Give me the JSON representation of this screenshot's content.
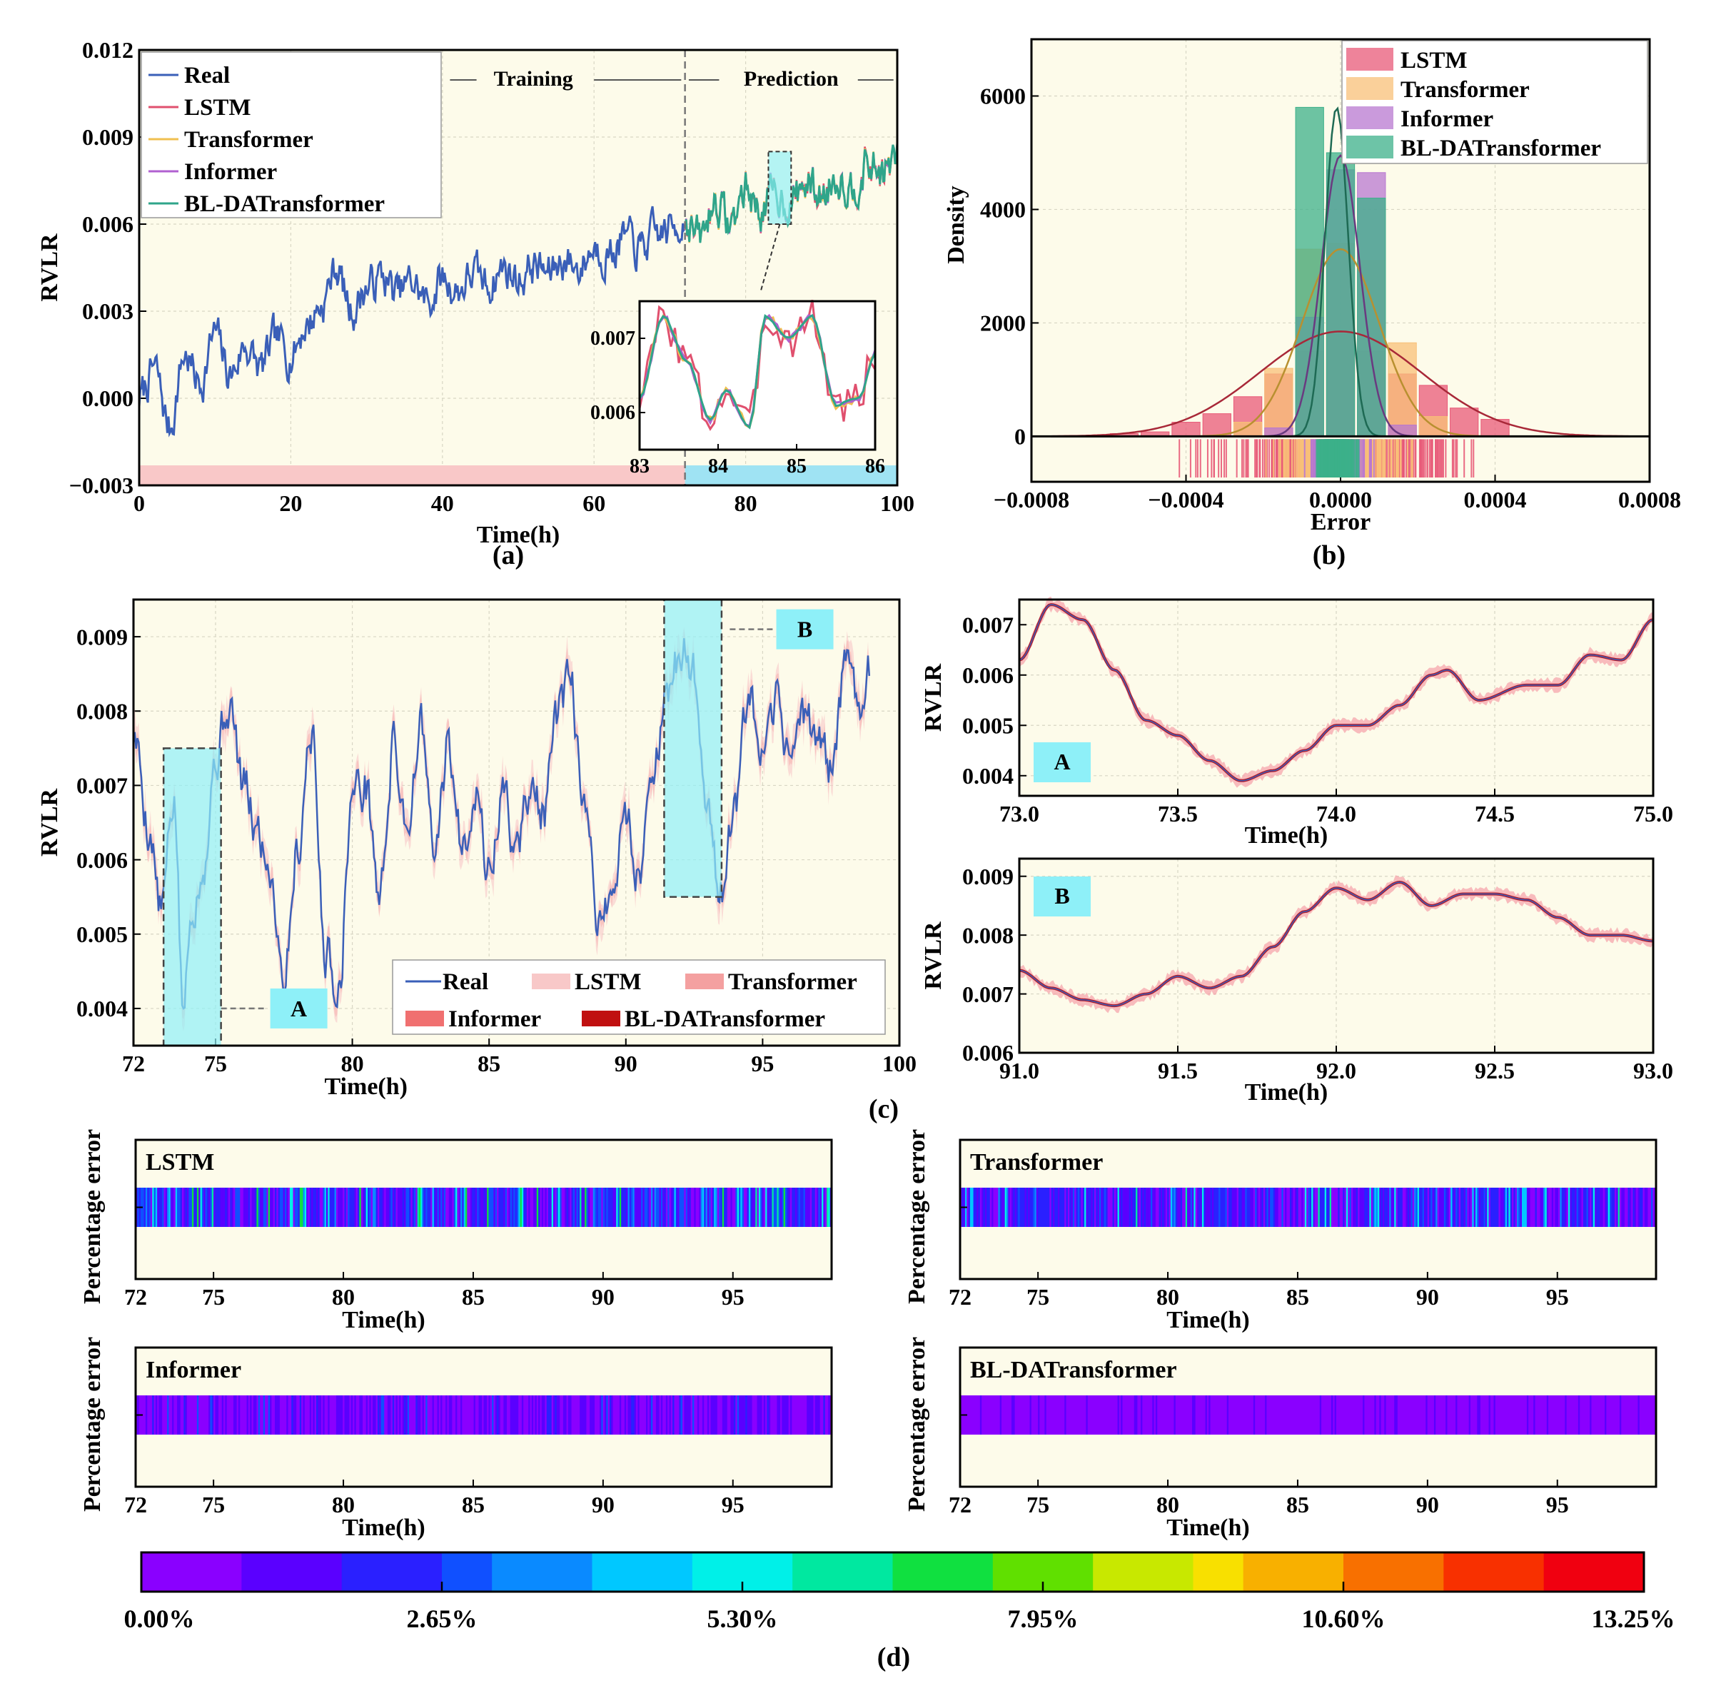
{
  "panel_labels": {
    "a": "(a)",
    "b": "(b)",
    "c": "(c)",
    "d": "(d)"
  },
  "chart_data": [
    {
      "id": "a",
      "type": "line",
      "xlabel": "Time(h)",
      "ylabel": "RVLR",
      "xlim": [
        0,
        100
      ],
      "ylim": [
        -0.003,
        0.012
      ],
      "xticks": [
        "0",
        "20",
        "40",
        "60",
        "80",
        "100"
      ],
      "yticks": [
        "−0.003",
        "0.000",
        "0.003",
        "0.006",
        "0.009",
        "0.012"
      ],
      "split_x": 72,
      "annotations": {
        "training": "Training",
        "prediction": "Prediction"
      },
      "legend": [
        "Real",
        "LSTM",
        "Transformer",
        "Informer",
        "BL-DATransformer"
      ],
      "colors": {
        "Real": "#3a5fb8",
        "LSTM": "#e0506e",
        "Transformer": "#f0c050",
        "Informer": "#b060d0",
        "BL-DATransformer": "#2fa58a",
        "train_band": "#f9c8c8",
        "pred_band": "#9fe3f3",
        "bg": "#fdfbea"
      },
      "real_anchors": {
        "x": [
          0,
          2,
          4,
          6,
          8,
          10,
          12,
          14,
          16,
          18,
          20,
          22,
          24,
          26,
          28,
          30,
          32,
          34,
          36,
          38,
          40,
          42,
          44,
          46,
          48,
          50,
          52,
          54,
          56,
          58,
          60,
          62,
          64,
          66,
          68,
          70,
          72,
          74,
          76,
          78,
          80,
          82,
          84,
          86,
          88,
          90,
          92,
          94,
          96,
          98,
          100
        ],
        "y": [
          0.0,
          0.001,
          -0.001,
          0.0015,
          0.0005,
          0.0022,
          0.0008,
          0.0018,
          0.001,
          0.002,
          0.0015,
          0.0025,
          0.0032,
          0.0045,
          0.003,
          0.0038,
          0.0042,
          0.0036,
          0.004,
          0.0033,
          0.0041,
          0.0037,
          0.0043,
          0.0039,
          0.0045,
          0.0041,
          0.0046,
          0.0043,
          0.0048,
          0.0045,
          0.0052,
          0.005,
          0.0055,
          0.0051,
          0.0056,
          0.0058,
          0.0062,
          0.0055,
          0.0068,
          0.006,
          0.0072,
          0.0065,
          0.007,
          0.0068,
          0.0074,
          0.007,
          0.0077,
          0.0073,
          0.008,
          0.0078,
          0.0082
        ]
      },
      "inset": {
        "xlim": [
          83,
          86
        ],
        "ylim": [
          0.0055,
          0.0075
        ],
        "xticks": [
          "83",
          "84",
          "85",
          "86"
        ],
        "yticks": [
          "0.006",
          "0.007"
        ]
      }
    },
    {
      "id": "b",
      "type": "histogram",
      "xlabel": "Error",
      "ylabel": "Density",
      "xlim": [
        -0.0008,
        0.0008
      ],
      "ylim": [
        -800,
        7000
      ],
      "xticks": [
        "−0.0008",
        "−0.0004",
        "0.0000",
        "0.0004",
        "0.0008"
      ],
      "yticks": [
        "0",
        "2000",
        "4000",
        "6000"
      ],
      "bin_width": 8e-05,
      "legend": [
        "LSTM",
        "Transformer",
        "Informer",
        "BL-DATransformer"
      ],
      "colors": {
        "LSTM": "#e85a78",
        "Transformer": "#f8c078",
        "Informer": "#b878d0",
        "BL-DATransformer": "#3cb08a"
      },
      "series": [
        {
          "name": "LSTM",
          "centers": [
            -0.00056,
            -0.00048,
            -0.0004,
            -0.00032,
            -0.00024,
            -0.00016,
            -8e-05,
            0.0,
            8e-05,
            0.00016,
            0.00024,
            0.00032,
            0.0004
          ],
          "values": [
            50,
            80,
            250,
            400,
            700,
            1100,
            1500,
            1800,
            1500,
            1100,
            900,
            500,
            300
          ],
          "fit_mu": 0.0,
          "fit_sigma": 0.00021,
          "fit_peak": 1850
        },
        {
          "name": "Transformer",
          "centers": [
            -0.00024,
            -0.00016,
            -8e-05,
            0.0,
            8e-05,
            0.00016,
            0.00024
          ],
          "values": [
            250,
            1200,
            3300,
            3400,
            3100,
            1650,
            350
          ],
          "fit_mu": 0.0,
          "fit_sigma": 0.0001,
          "fit_peak": 3300
        },
        {
          "name": "Informer",
          "centers": [
            -0.00016,
            -8e-05,
            0.0,
            8e-05,
            0.00016
          ],
          "values": [
            150,
            2100,
            4700,
            4650,
            200
          ],
          "fit_mu": 0.0,
          "fit_sigma": 5e-05,
          "fit_peak": 4950
        },
        {
          "name": "BL-DATransformer",
          "centers": [
            -8e-05,
            0.0,
            8e-05
          ],
          "values": [
            5800,
            5000,
            4200
          ],
          "fit_mu": -1e-05,
          "fit_sigma": 3e-05,
          "fit_peak": 5800
        }
      ]
    },
    {
      "id": "c",
      "type": "line",
      "xlabel": "Time(h)",
      "ylabel": "RVLR",
      "xlim": [
        72,
        100
      ],
      "ylim": [
        0.0035,
        0.0095
      ],
      "xticks": [
        "72",
        "75",
        "80",
        "85",
        "90",
        "95",
        "100"
      ],
      "yticks": [
        "0.004",
        "0.005",
        "0.006",
        "0.007",
        "0.008",
        "0.009"
      ],
      "zoom_boxes": [
        {
          "label": "A",
          "x0": 73.1,
          "x1": 75.2,
          "y0": 0.0035,
          "y1": 0.0075
        },
        {
          "label": "B",
          "x0": 91.4,
          "x1": 93.5,
          "y0": 0.0055,
          "y1": 0.0095
        }
      ],
      "legend": [
        "Real",
        "LSTM",
        "Transformer",
        "Informer",
        "BL-DATransformer"
      ],
      "colors": {
        "Real": "#3a5fb8",
        "LSTM": "#f8c8c8",
        "Transformer": "#f4a0a0",
        "Informer": "#f07070",
        "BL-DATransformer": "#c01010",
        "highlight": "#8ef0f8"
      },
      "real_anchors": {
        "x": [
          72,
          72.6,
          73.0,
          73.5,
          73.8,
          74.2,
          74.6,
          75.0,
          75.5,
          76.0,
          76.5,
          77.0,
          77.5,
          78.0,
          78.5,
          79.0,
          79.5,
          80.0,
          80.5,
          81.0,
          81.5,
          82.0,
          82.5,
          83.0,
          83.5,
          84.0,
          84.5,
          85.0,
          85.5,
          86.0,
          86.5,
          87.0,
          87.5,
          88.0,
          88.5,
          89.0,
          89.5,
          90.0,
          90.5,
          91.0,
          91.5,
          92.0,
          92.5,
          93.0,
          93.5,
          94.0,
          94.5,
          95.0,
          95.5,
          96.0,
          96.5,
          97.0,
          97.5,
          98.0,
          98.5,
          98.9
        ],
        "y": [
          0.0077,
          0.0064,
          0.0053,
          0.0068,
          0.004,
          0.0055,
          0.0061,
          0.0074,
          0.0081,
          0.007,
          0.0064,
          0.0059,
          0.0045,
          0.0062,
          0.0078,
          0.0048,
          0.0043,
          0.0069,
          0.007,
          0.0055,
          0.0075,
          0.0065,
          0.0078,
          0.006,
          0.0075,
          0.0062,
          0.007,
          0.0058,
          0.0069,
          0.0061,
          0.007,
          0.0066,
          0.0079,
          0.0083,
          0.0065,
          0.0053,
          0.0055,
          0.0066,
          0.0058,
          0.0074,
          0.008,
          0.0088,
          0.0085,
          0.0067,
          0.0055,
          0.0068,
          0.0081,
          0.0072,
          0.008,
          0.0075,
          0.0079,
          0.0077,
          0.0072,
          0.0085,
          0.0082,
          0.0086
        ]
      }
    },
    {
      "id": "cA",
      "type": "line",
      "label": "A",
      "xlabel": "Time(h)",
      "ylabel": "RVLR",
      "xlim": [
        73.0,
        75.0
      ],
      "ylim": [
        0.0036,
        0.0075
      ],
      "xticks": [
        "73.0",
        "73.5",
        "74.0",
        "74.5",
        "75.0"
      ],
      "yticks": [
        "0.004",
        "0.005",
        "0.006",
        "0.007"
      ],
      "real_anchors": {
        "x": [
          73.0,
          73.1,
          73.2,
          73.3,
          73.4,
          73.5,
          73.6,
          73.7,
          73.8,
          73.9,
          74.0,
          74.1,
          74.2,
          74.3,
          74.35,
          74.45,
          74.6,
          74.7,
          74.8,
          74.9,
          75.0
        ],
        "y": [
          0.0063,
          0.0074,
          0.0071,
          0.0061,
          0.0051,
          0.0048,
          0.0043,
          0.0039,
          0.0041,
          0.0045,
          0.005,
          0.005,
          0.0054,
          0.006,
          0.0061,
          0.0055,
          0.0058,
          0.0058,
          0.0064,
          0.0063,
          0.0071
        ]
      }
    },
    {
      "id": "cB",
      "type": "line",
      "label": "B",
      "xlabel": "Time(h)",
      "ylabel": "RVLR",
      "xlim": [
        91.0,
        93.0
      ],
      "ylim": [
        0.006,
        0.0093
      ],
      "xticks": [
        "91.0",
        "91.5",
        "92.0",
        "92.5",
        "93.0"
      ],
      "yticks": [
        "0.006",
        "0.007",
        "0.008",
        "0.009"
      ],
      "real_anchors": {
        "x": [
          91.0,
          91.1,
          91.2,
          91.3,
          91.4,
          91.5,
          91.6,
          91.7,
          91.8,
          91.9,
          92.0,
          92.1,
          92.2,
          92.3,
          92.4,
          92.5,
          92.6,
          92.7,
          92.8,
          92.9,
          93.0
        ],
        "y": [
          0.0074,
          0.0071,
          0.0069,
          0.0068,
          0.007,
          0.0073,
          0.0071,
          0.0073,
          0.0078,
          0.0084,
          0.0088,
          0.0086,
          0.0089,
          0.0085,
          0.0087,
          0.0087,
          0.0086,
          0.0083,
          0.008,
          0.008,
          0.0079
        ]
      }
    },
    {
      "id": "d",
      "type": "heatmap",
      "xlabel": "Time(h)",
      "ylabel": "Percentage error",
      "xlim": [
        72,
        98.8
      ],
      "xticks": [
        "72",
        "75",
        "80",
        "85",
        "90",
        "95"
      ],
      "colorbar": {
        "min": 0.0,
        "max": 13.25,
        "ticks": [
          "0.00%",
          "2.65%",
          "5.30%",
          "7.95%",
          "10.60%",
          "13.25%"
        ],
        "colors": [
          "#8a00ff",
          "#5a00ff",
          "#2a20ff",
          "#1050ff",
          "#0a8aff",
          "#00c8ff",
          "#00f0e8",
          "#00e8a0",
          "#10e040",
          "#60e000",
          "#c8e800",
          "#f8e000",
          "#f8b000",
          "#f87000",
          "#f83000",
          "#f00010"
        ]
      },
      "panels": [
        {
          "name": "LSTM",
          "typical_max_pct": 7.5
        },
        {
          "name": "Transformer",
          "typical_max_pct": 6.0
        },
        {
          "name": "Informer",
          "typical_max_pct": 3.2
        },
        {
          "name": "BL-DATransformer",
          "typical_max_pct": 1.5
        }
      ]
    }
  ]
}
